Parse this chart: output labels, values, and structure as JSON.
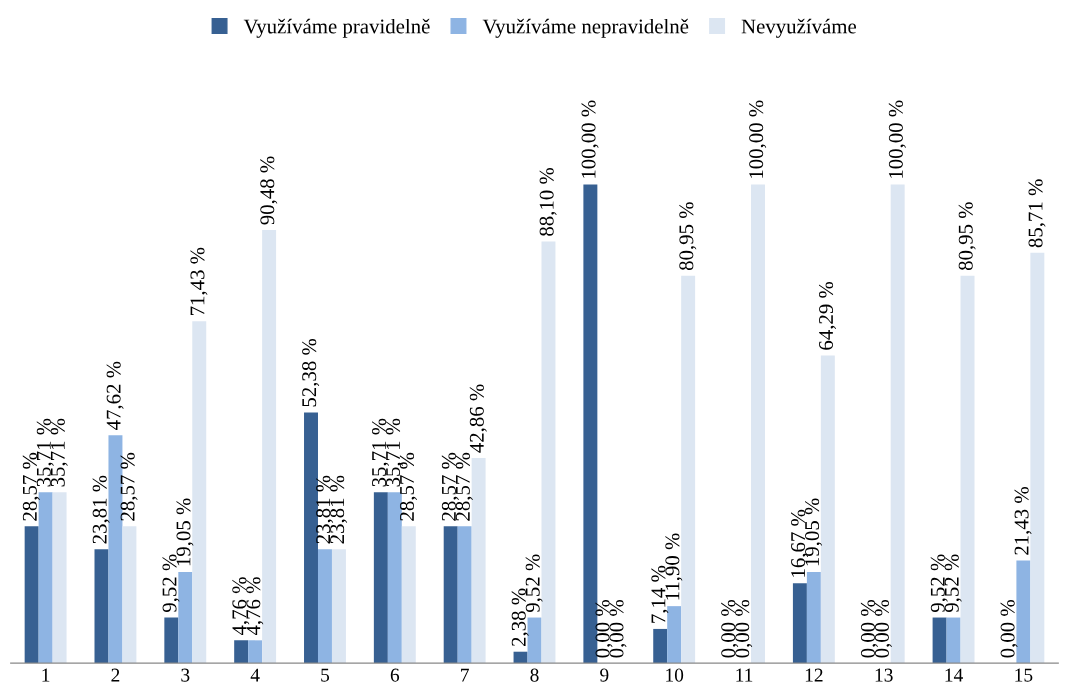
{
  "chart_data": {
    "type": "bar",
    "categories": [
      "1",
      "2",
      "3",
      "4",
      "5",
      "6",
      "7",
      "8",
      "9",
      "10",
      "11",
      "12",
      "13",
      "14",
      "15"
    ],
    "tick_labels": "x",
    "legend": "top",
    "grid": false,
    "series": [
      {
        "name": "Využíváme pravidelně",
        "color": "#376092",
        "values": [
          28.57,
          23.81,
          9.52,
          4.76,
          52.38,
          35.71,
          28.57,
          2.38,
          100.0,
          7.14,
          0.0,
          16.67,
          0.0,
          9.52,
          0.0
        ],
        "value_labels": [
          "28,57 %",
          "23,81 %",
          "9,52 %",
          "4,76 %",
          "52,38 %",
          "35,71 %",
          "28,57 %",
          "2,38 %",
          "100,00 %",
          "7,14 %",
          "0,00 %",
          "16,67 %",
          "0,00 %",
          "9,52 %",
          "0,00 %"
        ]
      },
      {
        "name": "Využíváme nepravidelně",
        "color": "#8eb4e3",
        "values": [
          35.71,
          47.62,
          19.05,
          4.76,
          23.81,
          35.71,
          28.57,
          9.52,
          0.0,
          11.9,
          0.0,
          19.05,
          0.0,
          9.52,
          21.43
        ],
        "value_labels": [
          "35,71 %",
          "47,62 %",
          "19,05 %",
          "4,76 %",
          "23,81 %",
          "35,71 %",
          "28,57 %",
          "9,52 %",
          "0,00 %",
          "11,90 %",
          "0,00 %",
          "19,05 %",
          "0,00 %",
          "9,52 %",
          "21,43 %"
        ]
      },
      {
        "name": "Nevyužíváme",
        "color": "#dce6f2",
        "values": [
          35.71,
          28.57,
          71.43,
          90.48,
          23.81,
          28.57,
          42.86,
          88.1,
          0.0,
          80.95,
          100.0,
          64.29,
          100.0,
          80.95,
          85.71
        ],
        "value_labels": [
          "35,71 %",
          "28,57 %",
          "71,43 %",
          "90,48 %",
          "23,81 %",
          "28,57 %",
          "42,86 %",
          "88,10 %",
          "0,00 %",
          "80,95 %",
          "100,00 %",
          "64,29 %",
          "100,00 %",
          "80,95 %",
          "85,71 %"
        ]
      }
    ]
  }
}
